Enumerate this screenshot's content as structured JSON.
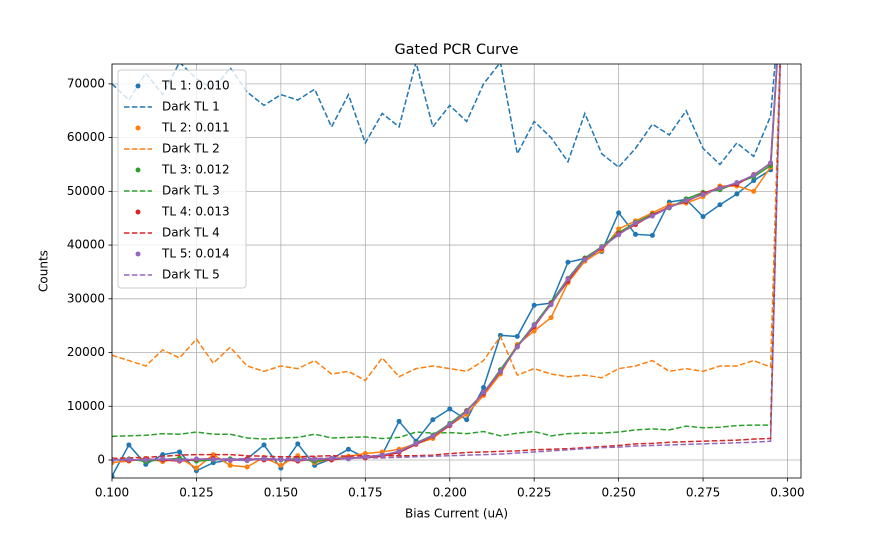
{
  "chart_data": {
    "type": "line",
    "title": "Gated PCR Curve",
    "x_label": "Bias Current (uA)",
    "y_label": "Counts",
    "x": [
      0.1,
      0.105,
      0.11,
      0.115,
      0.12,
      0.125,
      0.13,
      0.135,
      0.14,
      0.145,
      0.15,
      0.155,
      0.16,
      0.165,
      0.17,
      0.175,
      0.18,
      0.185,
      0.19,
      0.195,
      0.2,
      0.205,
      0.21,
      0.215,
      0.22,
      0.225,
      0.23,
      0.235,
      0.24,
      0.245,
      0.25,
      0.255,
      0.26,
      0.265,
      0.27,
      0.275,
      0.28,
      0.285,
      0.29,
      0.295,
      0.2985
    ],
    "series": [
      {
        "name": "TL 1: 0.010",
        "color": "#1f77b4",
        "linestyle": "solid",
        "marker": true,
        "values": [
          -3000,
          2800,
          -800,
          1000,
          1500,
          -2000,
          -500,
          0,
          200,
          2800,
          -1500,
          3000,
          -1000,
          200,
          2000,
          400,
          1000,
          7200,
          3500,
          7500,
          9500,
          7500,
          13500,
          23200,
          23000,
          28800,
          29200,
          36800,
          37500,
          38800,
          46000,
          42000,
          41800,
          48000,
          48500,
          45300,
          47500,
          49500,
          52000,
          54000,
          90000
        ]
      },
      {
        "name": "Dark TL 1",
        "color": "#1f77b4",
        "linestyle": "dashed",
        "marker": false,
        "values": [
          70000,
          67000,
          72000,
          68000,
          74000,
          71000,
          69000,
          73000,
          68500,
          66000,
          68000,
          67000,
          69000,
          62000,
          68000,
          59000,
          64500,
          62000,
          74000,
          62000,
          66000,
          63000,
          70000,
          74000,
          57000,
          63000,
          60000,
          55500,
          64500,
          57000,
          54500,
          58000,
          62500,
          60500,
          65000,
          58000,
          55000,
          59000,
          56500,
          64000,
          90000
        ]
      },
      {
        "name": "TL 2: 0.011",
        "color": "#ff7f0e",
        "linestyle": "solid",
        "marker": true,
        "values": [
          -500,
          -200,
          300,
          -300,
          400,
          -1500,
          1000,
          -1000,
          -1300,
          500,
          -1000,
          800,
          -500,
          200,
          700,
          1200,
          1500,
          2000,
          3000,
          4000,
          6500,
          8500,
          12000,
          16000,
          21500,
          24000,
          26500,
          33000,
          37000,
          39000,
          43000,
          44500,
          46000,
          47500,
          47800,
          49000,
          51000,
          51000,
          50000,
          54500,
          90000
        ]
      },
      {
        "name": "Dark TL 2",
        "color": "#ff7f0e",
        "linestyle": "dashed",
        "marker": false,
        "values": [
          19500,
          18500,
          17500,
          20500,
          19000,
          22500,
          18000,
          21000,
          17500,
          16500,
          17500,
          17000,
          18500,
          16000,
          16500,
          14800,
          19000,
          15500,
          17000,
          17500,
          17000,
          16500,
          18500,
          23000,
          15800,
          17000,
          16000,
          15500,
          15800,
          15300,
          17000,
          17500,
          18500,
          16500,
          17000,
          16500,
          17500,
          17500,
          18500,
          17300,
          90000
        ]
      },
      {
        "name": "TL 3: 0.012",
        "color": "#2ca02c",
        "linestyle": "solid",
        "marker": true,
        "values": [
          0,
          200,
          -300,
          100,
          300,
          -200,
          0,
          200,
          -100,
          300,
          0,
          200,
          -200,
          100,
          300,
          500,
          900,
          1500,
          3200,
          4600,
          6800,
          9200,
          12500,
          16800,
          21200,
          25200,
          29300,
          33800,
          37600,
          39700,
          42300,
          44200,
          45700,
          46900,
          48600,
          49800,
          50300,
          51600,
          52700,
          54800,
          90000
        ]
      },
      {
        "name": "Dark TL 3",
        "color": "#2ca02c",
        "linestyle": "dashed",
        "marker": false,
        "values": [
          4400,
          4500,
          4600,
          4900,
          4800,
          5200,
          4800,
          4800,
          4100,
          3900,
          4100,
          4200,
          4800,
          4100,
          4200,
          4300,
          4000,
          4200,
          5200,
          5000,
          5100,
          4900,
          5300,
          4500,
          5000,
          5300,
          4500,
          4900,
          5000,
          5000,
          5200,
          5600,
          5800,
          5600,
          6300,
          6000,
          6100,
          6400,
          6500,
          6500,
          90000
        ]
      },
      {
        "name": "TL 4: 0.013",
        "color": "#d62728",
        "linestyle": "solid",
        "marker": true,
        "values": [
          100,
          -100,
          200,
          0,
          -200,
          100,
          300,
          -100,
          200,
          0,
          100,
          -200,
          200,
          0,
          400,
          400,
          700,
          1400,
          2900,
          4400,
          6400,
          9100,
          12400,
          16400,
          21100,
          24800,
          29100,
          33300,
          37400,
          39400,
          42100,
          43800,
          45600,
          47100,
          48100,
          49600,
          50700,
          51300,
          53100,
          55200,
          90000
        ]
      },
      {
        "name": "Dark TL 4",
        "color": "#d62728",
        "linestyle": "dashed",
        "marker": false,
        "values": [
          300,
          400,
          500,
          700,
          900,
          1000,
          1000,
          1000,
          800,
          700,
          600,
          600,
          700,
          800,
          700,
          800,
          800,
          800,
          800,
          900,
          1200,
          1400,
          1500,
          1600,
          1700,
          1900,
          2000,
          2100,
          2300,
          2500,
          2700,
          3000,
          3100,
          3300,
          3400,
          3500,
          3600,
          3700,
          3900,
          4000,
          90000
        ]
      },
      {
        "name": "TL 5: 0.014",
        "color": "#9467bd",
        "linestyle": "solid",
        "marker": true,
        "values": [
          0,
          100,
          0,
          200,
          -100,
          200,
          100,
          0,
          -100,
          200,
          100,
          0,
          100,
          300,
          200,
          600,
          900,
          1600,
          3100,
          4500,
          6600,
          9000,
          12600,
          16500,
          21000,
          25100,
          28900,
          33700,
          37300,
          39600,
          41900,
          44100,
          45400,
          47000,
          48300,
          49400,
          50600,
          51600,
          53000,
          55300,
          90000
        ]
      },
      {
        "name": "Dark TL 5",
        "color": "#9467bd",
        "linestyle": "dashed",
        "marker": false,
        "values": [
          0,
          0,
          50,
          100,
          150,
          150,
          200,
          200,
          250,
          250,
          250,
          300,
          300,
          350,
          350,
          400,
          400,
          500,
          600,
          700,
          800,
          900,
          1000,
          1100,
          1300,
          1500,
          1700,
          1900,
          2100,
          2300,
          2400,
          2600,
          2700,
          2800,
          2900,
          3000,
          3100,
          3200,
          3300,
          3500,
          90000
        ]
      }
    ],
    "xlim": [
      0.1,
      0.304
    ],
    "ylim": [
      -3350,
      73700
    ],
    "xticks": [
      {
        "value": 0.1,
        "label": "0.100"
      },
      {
        "value": 0.125,
        "label": "0.125"
      },
      {
        "value": 0.15,
        "label": "0.150"
      },
      {
        "value": 0.175,
        "label": "0.175"
      },
      {
        "value": 0.2,
        "label": "0.200"
      },
      {
        "value": 0.225,
        "label": "0.225"
      },
      {
        "value": 0.25,
        "label": "0.250"
      },
      {
        "value": 0.275,
        "label": "0.275"
      },
      {
        "value": 0.3,
        "label": "0.300"
      }
    ],
    "yticks": [
      0,
      10000,
      20000,
      30000,
      40000,
      50000,
      60000,
      70000
    ],
    "grid": true,
    "legend": "upper-left"
  }
}
